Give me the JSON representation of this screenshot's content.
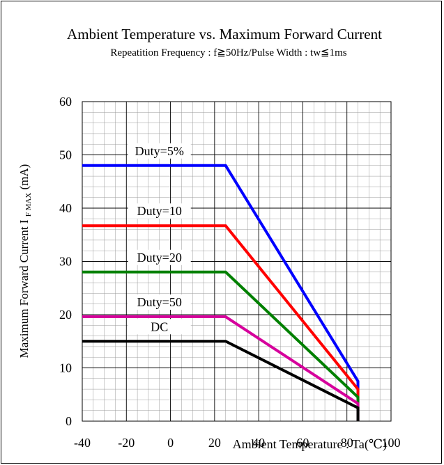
{
  "chart_data": {
    "type": "line",
    "title": "Ambient Temperature vs. Maximum Forward Current",
    "subtitle": "Repeatition Frequency : f≧50Hz/Pulse Width : tw≦1ms",
    "xlabel": "Ambient Temperature : Ta(℃)",
    "ylabel_main": "Maximum Forward Current I",
    "ylabel_sub": "F MAX",
    "ylabel_unit": " (mA)",
    "xlim": [
      -40,
      100
    ],
    "ylim": [
      0,
      60
    ],
    "x_ticks": [
      "-40",
      "-20",
      "0",
      "20",
      "40",
      "60",
      "80",
      "100"
    ],
    "y_ticks": [
      "0",
      "10",
      "20",
      "30",
      "40",
      "50",
      "60"
    ],
    "grid": true,
    "series": [
      {
        "name": "Duty=5%",
        "color": "#0000ff",
        "x": [
          -40,
          25,
          85,
          85
        ],
        "y": [
          48,
          48,
          7.5,
          0
        ]
      },
      {
        "name": "Duty=10",
        "color": "#ff0000",
        "x": [
          -40,
          25,
          85,
          85
        ],
        "y": [
          36.7,
          36.7,
          6,
          0
        ]
      },
      {
        "name": "Duty=20",
        "color": "#008000",
        "x": [
          -40,
          25,
          85,
          85
        ],
        "y": [
          28,
          28,
          4.5,
          0
        ]
      },
      {
        "name": "Duty=50",
        "color": "#d6009c",
        "x": [
          -40,
          25,
          85,
          85
        ],
        "y": [
          19.6,
          19.6,
          3.3,
          0
        ]
      },
      {
        "name": "DC",
        "color": "#000000",
        "x": [
          -40,
          25,
          85,
          85
        ],
        "y": [
          15,
          15,
          2.5,
          0
        ]
      }
    ]
  }
}
